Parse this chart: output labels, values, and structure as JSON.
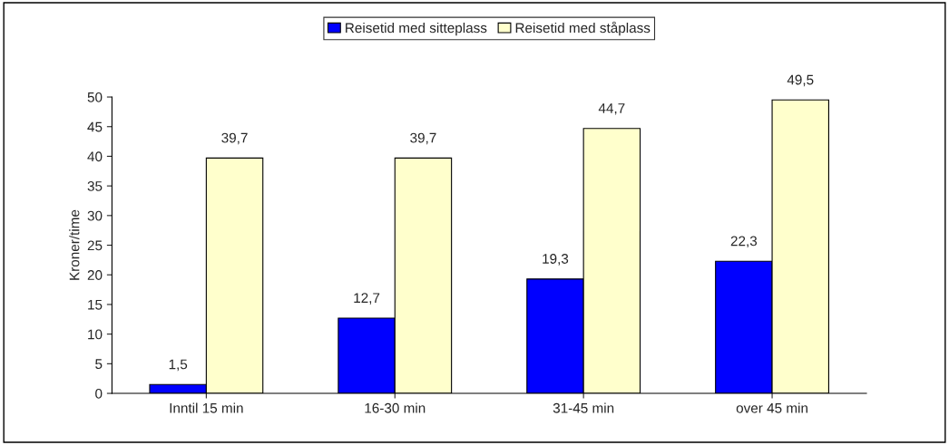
{
  "chart_data": {
    "type": "bar",
    "categories": [
      "Inntil 15 min",
      "16-30 min",
      "31-45 min",
      "over 45 min"
    ],
    "series": [
      {
        "name": "Reisetid med sitteplass",
        "color": "#0000ff",
        "values": [
          1.5,
          12.7,
          19.3,
          22.3
        ],
        "value_labels": [
          "1,5",
          "12,7",
          "19,3",
          "22,3"
        ]
      },
      {
        "name": "Reisetid med ståplass",
        "color": "#ffffcc",
        "values": [
          39.7,
          39.7,
          44.7,
          49.5
        ],
        "value_labels": [
          "39,7",
          "39,7",
          "44,7",
          "49,5"
        ]
      }
    ],
    "ylabel": "Kroner/time",
    "ylim": [
      0,
      50
    ],
    "yticks": [
      0,
      5,
      10,
      15,
      20,
      25,
      30,
      35,
      40,
      45,
      50
    ],
    "grid": false,
    "legend": "top"
  }
}
